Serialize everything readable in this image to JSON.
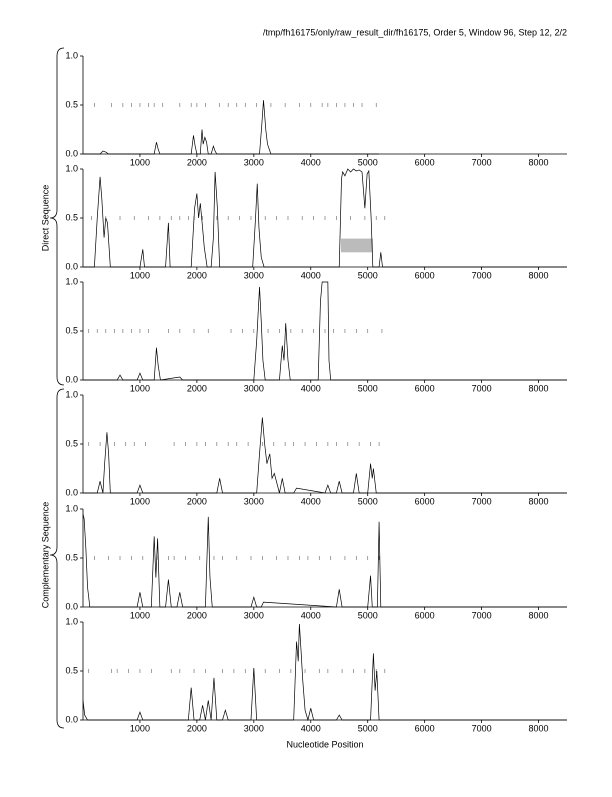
{
  "header": "/tmp/fh16175/only/raw_result_dir/fh16175, Order 5, Window 96, Step 12, 2/2",
  "group_labels": [
    "Direct Sequence",
    "Complementary Sequence"
  ],
  "x_label": "Nucleotide Position",
  "chart_data": [
    {
      "type": "line",
      "color": "#000000",
      "xlim": [
        0,
        8500
      ],
      "ylim": [
        0,
        1
      ],
      "xticks": [
        1000,
        2000,
        3000,
        4000,
        5000,
        6000,
        7000,
        8000
      ],
      "yticks": [
        {
          "value": 0,
          "label": "0.0"
        },
        0.5,
        {
          "value": 1,
          "label": "1.0"
        }
      ],
      "x": [
        0,
        300,
        350,
        400,
        450,
        1250,
        1290,
        1320,
        1350,
        1900,
        1940,
        1970,
        2000,
        2060,
        2090,
        2110,
        2140,
        2170,
        2200,
        2250,
        2290,
        2320,
        2350,
        3100,
        3140,
        3170,
        3190,
        3210,
        3240,
        3300,
        5200
      ],
      "values": [
        0,
        0,
        0.03,
        0.02,
        0,
        0,
        0.12,
        0.05,
        0,
        0,
        0.19,
        0.08,
        0,
        0,
        0.25,
        0.1,
        0.17,
        0.12,
        0,
        0,
        0.08,
        0.03,
        0,
        0,
        0.3,
        0.55,
        0.4,
        0.25,
        0.1,
        0,
        0
      ],
      "dashes": {
        "y": 0.5,
        "x": [
          200,
          500,
          700,
          850,
          1000,
          1150,
          1250,
          1400,
          1700,
          1900,
          2000,
          2150,
          2400,
          2550,
          2700,
          2850,
          3050,
          3300,
          3550,
          3800,
          4000,
          4200,
          4300,
          4450,
          4600,
          4750,
          4900,
          5150
        ]
      }
    },
    {
      "type": "line",
      "color": "#000000",
      "xlim": [
        0,
        8500
      ],
      "ylim": [
        0,
        1
      ],
      "xticks": [
        1000,
        2000,
        3000,
        4000,
        5000,
        6000,
        7000,
        8000
      ],
      "yticks": [
        {
          "value": 0,
          "label": "0.0"
        },
        0.5,
        {
          "value": 1,
          "label": "1.0"
        }
      ],
      "x": [
        0,
        200,
        250,
        300,
        330,
        370,
        400,
        430,
        480,
        1000,
        1050,
        1080,
        1450,
        1500,
        1530,
        1900,
        1960,
        2000,
        2030,
        2060,
        2100,
        2130,
        2180,
        2250,
        2290,
        2320,
        2360,
        2400,
        2980,
        3030,
        3060,
        3090,
        3130,
        3180,
        4500,
        4540,
        4560,
        4600,
        4650,
        4700,
        4750,
        4800,
        4850,
        4900,
        4950,
        4990,
        5020,
        5060,
        5090,
        5200,
        5230,
        5260,
        8500
      ],
      "values": [
        0,
        0,
        0.5,
        0.92,
        0.7,
        0.3,
        0.5,
        0.45,
        0,
        0,
        0.18,
        0,
        0,
        0.45,
        0,
        0,
        0.6,
        0.75,
        0.5,
        0.65,
        0.4,
        0.2,
        0,
        0,
        0.3,
        0.97,
        0.6,
        0,
        0,
        0.5,
        0.85,
        0.4,
        0.1,
        0,
        0,
        0.9,
        0.97,
        0.93,
        1.0,
        0.97,
        1.0,
        0.98,
        0.99,
        0.97,
        0.6,
        0.95,
        0.98,
        0.5,
        0,
        0,
        0.15,
        0,
        0
      ],
      "dashes": {
        "y": 0.5,
        "x": [
          150,
          400,
          650,
          900,
          1150,
          1350,
          1550,
          1700,
          1850,
          1950,
          2100,
          2350,
          2550,
          2750,
          2950,
          3200,
          3400,
          3600,
          3850,
          4050,
          4250,
          4450,
          4700,
          4950,
          5150,
          5300
        ]
      },
      "region": {
        "x": [
          4530,
          5090
        ],
        "y": [
          0.15,
          0.29
        ],
        "color": "#bbbbbb"
      }
    },
    {
      "type": "line",
      "color": "#000000",
      "xlim": [
        0,
        8500
      ],
      "ylim": [
        0,
        1
      ],
      "xticks": [
        1000,
        2000,
        3000,
        4000,
        5000,
        6000,
        7000,
        8000
      ],
      "yticks": [
        {
          "value": 0,
          "label": "0.0"
        },
        0.5,
        {
          "value": 1,
          "label": "1.0"
        }
      ],
      "x": [
        0,
        600,
        650,
        700,
        950,
        1000,
        1050,
        1250,
        1290,
        1320,
        1360,
        1700,
        1750,
        3000,
        3050,
        3100,
        3130,
        3160,
        3200,
        3450,
        3500,
        3530,
        3560,
        3600,
        3640,
        4130,
        4170,
        4200,
        4300,
        4320,
        4350,
        8500
      ],
      "values": [
        0,
        0,
        0.05,
        0,
        0,
        0.07,
        0,
        0,
        0.33,
        0.15,
        0,
        0.03,
        0,
        0,
        0.4,
        0.95,
        0.6,
        0.2,
        0,
        0,
        0.35,
        0.2,
        0.58,
        0.2,
        0,
        0,
        0.8,
        1.0,
        1.0,
        0.2,
        0,
        0
      ],
      "dashes": {
        "y": 0.5,
        "x": [
          100,
          250,
          400,
          550,
          700,
          850,
          1000,
          1150,
          1500,
          1700,
          1950,
          2200,
          2600,
          2800,
          3000,
          3250,
          3450,
          3650,
          3850,
          4050,
          4250,
          4400,
          4600,
          4800,
          5000,
          5250
        ]
      }
    },
    {
      "type": "line",
      "color": "#000000",
      "xlim": [
        0,
        8500
      ],
      "ylim": [
        0,
        1
      ],
      "xticks": [
        1000,
        2000,
        3000,
        4000,
        5000,
        6000,
        7000,
        8000
      ],
      "yticks": [
        {
          "value": 0,
          "label": "0.0"
        },
        0.5,
        {
          "value": 1,
          "label": "1.0"
        }
      ],
      "x": [
        0,
        250,
        300,
        350,
        380,
        420,
        450,
        480,
        950,
        1000,
        1050,
        2350,
        2400,
        2450,
        3050,
        3100,
        3150,
        3190,
        3230,
        3280,
        3320,
        3360,
        3450,
        3500,
        3550,
        3700,
        3750,
        4250,
        4300,
        4350,
        4450,
        4500,
        4550,
        4750,
        4800,
        4850,
        5000,
        5050,
        5080,
        5100,
        5150,
        8500
      ],
      "values": [
        0,
        0,
        0.12,
        0,
        0.3,
        0.62,
        0.4,
        0,
        0,
        0.08,
        0,
        0,
        0.15,
        0,
        0,
        0.4,
        0.77,
        0.5,
        0.3,
        0.4,
        0.15,
        0.2,
        0,
        0.15,
        0,
        0,
        0.05,
        0,
        0.08,
        0,
        0,
        0.12,
        0,
        0,
        0.2,
        0,
        0,
        0.3,
        0.15,
        0.25,
        0,
        0
      ],
      "dashes": {
        "y": 0.5,
        "x": [
          100,
          300,
          550,
          750,
          900,
          1100,
          1600,
          1800,
          2000,
          2150,
          2350,
          2550,
          2700,
          2900,
          3150,
          3350,
          3550,
          3700,
          3900,
          4100,
          4300,
          4450,
          4650,
          4850,
          5050,
          5200
        ]
      }
    },
    {
      "type": "line",
      "color": "#000000",
      "xlim": [
        0,
        8500
      ],
      "ylim": [
        0,
        1
      ],
      "xticks": [
        1000,
        2000,
        3000,
        4000,
        5000,
        6000,
        7000,
        8000
      ],
      "yticks": [
        {
          "value": 0,
          "label": "0.0"
        },
        0.5,
        {
          "value": 1,
          "label": "1.0"
        }
      ],
      "x": [
        0,
        20,
        50,
        80,
        120,
        950,
        1000,
        1050,
        1200,
        1250,
        1280,
        1310,
        1350,
        1450,
        1500,
        1550,
        1650,
        1700,
        1750,
        2150,
        2200,
        2230,
        2270,
        2950,
        3000,
        3050,
        3130,
        3170,
        4450,
        4500,
        4550,
        5000,
        5050,
        5080,
        5170,
        5200,
        5230,
        8500
      ],
      "values": [
        0.95,
        0.9,
        0.6,
        0.2,
        0,
        0,
        0.15,
        0,
        0,
        0.72,
        0.3,
        0.7,
        0,
        0,
        0.28,
        0,
        0,
        0.15,
        0,
        0,
        0.92,
        0.3,
        0,
        0,
        0.1,
        0,
        0,
        0.05,
        0,
        0.18,
        0,
        0,
        0.32,
        0,
        0,
        0.87,
        0,
        0
      ],
      "dashes": {
        "y": 0.5,
        "x": [
          200,
          450,
          650,
          850,
          1050,
          1300,
          1500,
          1600,
          1800,
          2050,
          2300,
          2450,
          2700,
          2950,
          3150,
          3400,
          3600,
          3800,
          3950,
          4150,
          4350,
          4600,
          4800,
          5000,
          5200
        ]
      }
    },
    {
      "type": "line",
      "color": "#000000",
      "xlim": [
        0,
        8500
      ],
      "ylim": [
        0,
        1
      ],
      "xticks": [
        1000,
        2000,
        3000,
        4000,
        5000,
        6000,
        7000,
        8000
      ],
      "yticks": [
        {
          "value": 0,
          "label": "0.0"
        },
        0.5,
        {
          "value": 1,
          "label": "1.0"
        }
      ],
      "x": [
        0,
        30,
        80,
        950,
        1000,
        1050,
        1850,
        1900,
        1950,
        2050,
        2100,
        2150,
        2200,
        2250,
        2300,
        2350,
        2450,
        2500,
        2550,
        2950,
        3000,
        3050,
        3700,
        3750,
        3780,
        3800,
        3830,
        3860,
        3900,
        3950,
        4000,
        4050,
        4450,
        4500,
        4550,
        5050,
        5100,
        5130,
        5160,
        5200,
        8500
      ],
      "values": [
        0.2,
        0.05,
        0,
        0,
        0.08,
        0,
        0,
        0.33,
        0,
        0,
        0.15,
        0,
        0.2,
        0,
        0.43,
        0,
        0,
        0.1,
        0,
        0,
        0.53,
        0,
        0,
        0.8,
        0.6,
        0.98,
        0.7,
        0.4,
        0.1,
        0,
        0.12,
        0,
        0,
        0.05,
        0,
        0,
        0.68,
        0.3,
        0.5,
        0,
        0
      ],
      "dashes": {
        "y": 0.5,
        "x": [
          100,
          500,
          600,
          800,
          1000,
          1200,
          1550,
          1700,
          1950,
          2150,
          2450,
          2650,
          2850,
          3000,
          3200,
          3450,
          3650,
          3900,
          4150,
          4300,
          4550,
          4750,
          4950,
          5150,
          5300
        ]
      }
    }
  ]
}
